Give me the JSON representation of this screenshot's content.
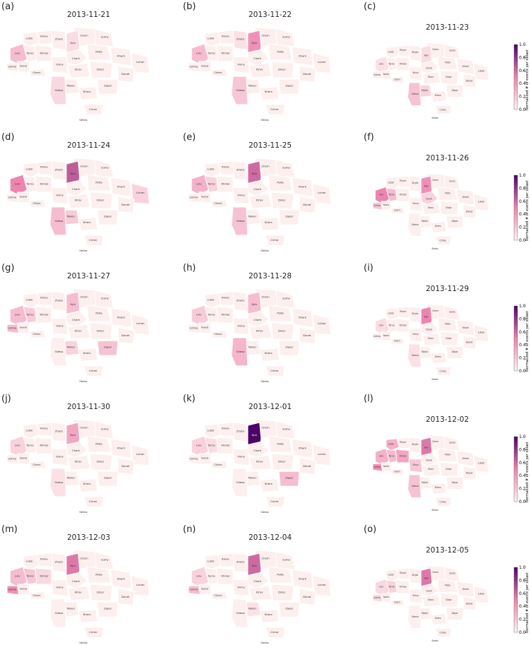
{
  "colorbar_label": "Normalized # of events per oblast",
  "colorbar_ticks": [
    "0.0",
    "0.2",
    "0.4",
    "0.6",
    "0.8",
    "1.0"
  ],
  "colors": {
    "min": "#fdf3f1",
    "mid": "#ee85ae",
    "max": "#4b0367",
    "border": "#ffffff"
  },
  "city_labels": [
    "Lutsk",
    "Rivne",
    "Zhyto",
    "Chern",
    "Sumy",
    "Kyiv",
    "Lviv",
    "Terno",
    "Khmel",
    "Cherk",
    "Polta",
    "Khark",
    "Uzhho",
    "Ivano",
    "Vinny",
    "Kirov",
    "Dnipr",
    "Luhan",
    "Chern",
    "Mykol",
    "Donet",
    "Odesa",
    "Khers",
    "Zapor",
    "Crime",
    "Sevas"
  ],
  "panels": [
    {
      "letter": "(a)",
      "date": "2013-11-21",
      "values": {
        "Lviv": 0.25,
        "Kyiv": 0.1,
        "Odesa": 0.12
      }
    },
    {
      "letter": "(b)",
      "date": "2013-11-22",
      "values": {
        "Lviv": 0.25,
        "Kyiv": 0.45,
        "Odesa": 0.2,
        "Zhyto": 0.08
      }
    },
    {
      "letter": "(c)",
      "date": "2013-11-23",
      "values": {
        "Lviv": 0.08,
        "Kyiv": 0.1,
        "Odesa": 0.22,
        "Mykol": 0.15
      }
    },
    {
      "letter": "(d)",
      "date": "2013-11-24",
      "values": {
        "Lviv": 0.5,
        "Kyiv": 0.65,
        "Odesa": 0.25,
        "Luhan": 0.15,
        "Mykol": 0.18
      }
    },
    {
      "letter": "(e)",
      "date": "2013-11-25",
      "values": {
        "Lviv": 0.3,
        "Kyiv": 0.6,
        "Odesa": 0.22,
        "Terno": 0.15
      }
    },
    {
      "letter": "(f)",
      "date": "2013-11-26",
      "values": {
        "Lviv": 0.5,
        "Kyiv": 0.45,
        "Terno": 0.25,
        "Uzhho": 0.2,
        "Cherk": 0.15
      }
    },
    {
      "letter": "(g)",
      "date": "2013-11-27",
      "values": {
        "Lviv": 0.25,
        "Kyiv": 0.25,
        "Uzhho": 0.25,
        "Zapor": 0.22,
        "Mykol": 0.15,
        "Terno": 0.18
      }
    },
    {
      "letter": "(h)",
      "date": "2013-11-28",
      "values": {
        "Lviv": 0.18,
        "Kyiv": 0.25,
        "Odesa": 0.28
      }
    },
    {
      "letter": "(i)",
      "date": "2013-11-29",
      "values": {
        "Lviv": 0.1,
        "Kyiv": 0.5,
        "Odesa": 0.08
      }
    },
    {
      "letter": "(j)",
      "date": "2013-11-30",
      "values": {
        "Lviv": 0.15,
        "Kyiv": 0.35,
        "Odesa": 0.08
      }
    },
    {
      "letter": "(k)",
      "date": "2013-12-01",
      "values": {
        "Lviv": 0.15,
        "Kyiv": 1.0,
        "Zapor": 0.25,
        "Terno": 0.1
      }
    },
    {
      "letter": "(l)",
      "date": "2013-12-02",
      "values": {
        "Lviv": 0.3,
        "Kyiv": 0.55,
        "Uzhho": 0.45,
        "Lutsk": 0.3,
        "Khmel": 0.35,
        "Terno": 0.25,
        "Odesa": 0.22,
        "Vinny": 0.2
      }
    },
    {
      "letter": "(m)",
      "date": "2013-12-03",
      "values": {
        "Lviv": 0.25,
        "Kyiv": 0.55,
        "Uzhho": 0.45,
        "Terno": 0.2,
        "Khmel": 0.12
      }
    },
    {
      "letter": "(n)",
      "date": "2013-12-04",
      "values": {
        "Lviv": 0.15,
        "Kyiv": 0.6,
        "Uzhho": 0.25,
        "Mykol": 0.08
      }
    },
    {
      "letter": "(o)",
      "date": "2013-12-05",
      "values": {
        "Lviv": 0.12,
        "Kyiv": 0.55,
        "Terno": 0.15,
        "Uzhho": 0.12
      }
    }
  ]
}
